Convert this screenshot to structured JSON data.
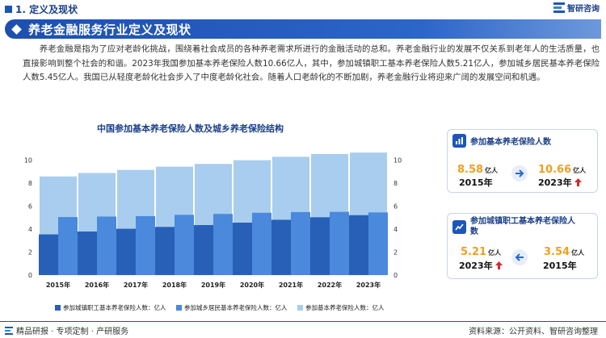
{
  "section": {
    "title": "1. 定义及现状"
  },
  "brand": {
    "name": "智研咨询"
  },
  "banner": {
    "title": "养老金融服务行业定义及现状"
  },
  "paragraph": "养老金融是指为了应对老龄化挑战，围绕着社会成员的各种养老需求所进行的金融活动的总和。养老金融行业的发展不仅关系到老年人的生活质量，也直接影响到整个社会的和谐。2023年我国参加基本养老保险人数10.66亿人，其中，参加城镇职工基本养老保险人数5.21亿人，参加城乡居民基本养老保险人数5.45亿人。我国已从轻度老龄化社会步入了中度老龄化社会。随着人口老龄化的不断加剧，养老金融行业将迎来广阔的发展空间和机遇。",
  "chart_data": {
    "type": "bar",
    "title": "中国参加基本养老保险人数及城乡养老保险结构",
    "categories": [
      "2015年",
      "2016年",
      "2017年",
      "2018年",
      "2019年",
      "2020年",
      "2021年",
      "2022年",
      "2023年"
    ],
    "series": [
      {
        "name": "参加城镇职工基本养老保险人数：亿人",
        "values": [
          3.54,
          3.79,
          4.03,
          4.19,
          4.35,
          4.56,
          4.81,
          5.03,
          5.21
        ]
      },
      {
        "name": "参加城乡居民基本养老保险人数：亿人",
        "values": [
          5.05,
          5.09,
          5.13,
          5.24,
          5.32,
          5.42,
          5.48,
          5.5,
          5.45
        ]
      },
      {
        "name": "参加基本养老保险人数：亿人",
        "values": [
          8.58,
          8.88,
          9.15,
          9.43,
          9.67,
          9.99,
          10.29,
          10.53,
          10.66
        ]
      }
    ],
    "ylim": [
      0,
      12
    ],
    "yticks": [
      "0",
      "2",
      "4",
      "6",
      "8",
      "10"
    ],
    "legend_position": "bottom",
    "colors": [
      "#2860b8",
      "#4a89dc",
      "#a8cdee"
    ]
  },
  "card1": {
    "title": "参加基本养老保险人数",
    "from_value": "8.58",
    "from_unit": "亿人",
    "from_year": "2015年",
    "to_value": "10.66",
    "to_unit": "亿人",
    "to_year": "2023年"
  },
  "card2": {
    "title": "参加城镇职工基本养老保险人数",
    "from_value": "5.21",
    "from_unit": "亿人",
    "from_year": "2023年",
    "to_value": "3.54",
    "to_unit": "亿人",
    "to_year": "2015年"
  },
  "footer": {
    "left": "精品研报 · 专项定制 · 产研服务",
    "right": "资料来源：公开资料、智研咨询整理"
  },
  "colors": {
    "primary": "#1d4fae",
    "accent_orange": "#f0a020",
    "arrow_red": "#d8262c"
  }
}
